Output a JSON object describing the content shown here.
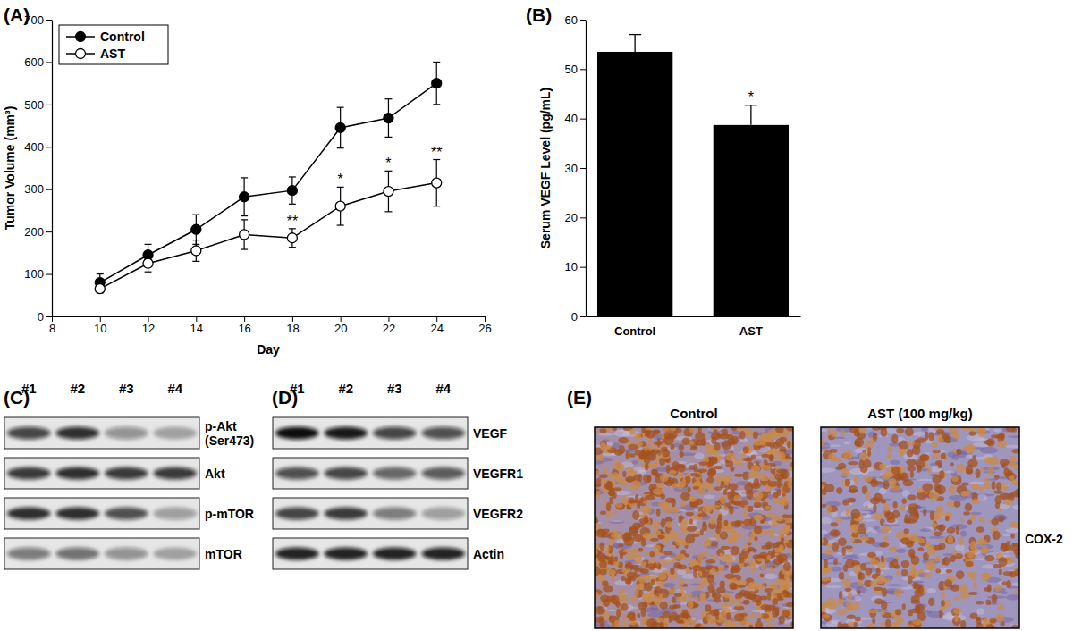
{
  "chart_data": [
    {
      "type": "line",
      "x_label": "Day",
      "y_label": "Tumor Volume (mm³)",
      "x": [
        10,
        12,
        14,
        16,
        18,
        20,
        22,
        24
      ],
      "xlim": [
        8,
        26
      ],
      "xticks": [
        8,
        10,
        12,
        14,
        16,
        18,
        20,
        22,
        24,
        26
      ],
      "ylim": [
        0,
        700
      ],
      "yticks": [
        0,
        100,
        200,
        300,
        400,
        500,
        600,
        700
      ],
      "legend": "upper left",
      "series": [
        {
          "name": "Control",
          "color": "#000000",
          "marker": "filled-circle",
          "values": [
            80,
            145,
            205,
            282,
            297,
            445,
            468,
            550
          ],
          "errors": [
            20,
            25,
            35,
            45,
            32,
            48,
            45,
            50
          ]
        },
        {
          "name": "AST",
          "color": "#000000",
          "marker": "open-circle",
          "values": [
            65,
            125,
            155,
            193,
            185,
            260,
            295,
            315
          ],
          "errors": [
            10,
            20,
            25,
            35,
            22,
            45,
            48,
            55
          ],
          "annotations": [
            {
              "x": 18,
              "text": "**"
            },
            {
              "x": 20,
              "text": "*"
            },
            {
              "x": 22,
              "text": "*"
            },
            {
              "x": 24,
              "text": "**"
            }
          ]
        }
      ]
    },
    {
      "type": "bar",
      "y_label": "Serum VEGF Level (pg/mL)",
      "categories": [
        "Control",
        "AST"
      ],
      "values": [
        53.5,
        38.7
      ],
      "errors": [
        3.5,
        4
      ],
      "color": "#000000",
      "ylim": [
        0,
        60
      ],
      "yticks": [
        0,
        10,
        20,
        30,
        40,
        50,
        60
      ],
      "annotations": [
        {
          "index": 1,
          "text": "*"
        }
      ]
    }
  ],
  "panel_labels": [
    "(A)",
    "(B)",
    "(C)",
    "(D)",
    "(E)"
  ],
  "blots": [
    {
      "lanes": [
        "#1",
        "#2",
        "#3",
        "#4"
      ],
      "rows": [
        {
          "label": "p-Akt\n(Ser473)",
          "intensities": [
            0.75,
            0.85,
            0.4,
            0.3
          ]
        },
        {
          "label": "Akt",
          "intensities": [
            0.8,
            0.85,
            0.8,
            0.8
          ]
        },
        {
          "label": "p-mTOR",
          "intensities": [
            0.85,
            0.85,
            0.7,
            0.35
          ]
        },
        {
          "label": "mTOR",
          "intensities": [
            0.5,
            0.55,
            0.4,
            0.3
          ]
        }
      ]
    },
    {
      "lanes": [
        "#1",
        "#2",
        "#3",
        "#4"
      ],
      "rows": [
        {
          "label": "VEGF",
          "intensities": [
            1,
            0.95,
            0.75,
            0.7
          ]
        },
        {
          "label": "VEGFR1",
          "intensities": [
            0.7,
            0.75,
            0.6,
            0.65
          ]
        },
        {
          "label": "VEGFR2",
          "intensities": [
            0.75,
            0.8,
            0.5,
            0.35
          ]
        },
        {
          "label": "Actin",
          "intensities": [
            0.9,
            0.9,
            0.9,
            0.9
          ]
        }
      ]
    }
  ],
  "ihc": {
    "images": [
      {
        "title": "Control"
      },
      {
        "title": "AST (100 mg/kg)"
      }
    ],
    "label": "COX-2"
  }
}
